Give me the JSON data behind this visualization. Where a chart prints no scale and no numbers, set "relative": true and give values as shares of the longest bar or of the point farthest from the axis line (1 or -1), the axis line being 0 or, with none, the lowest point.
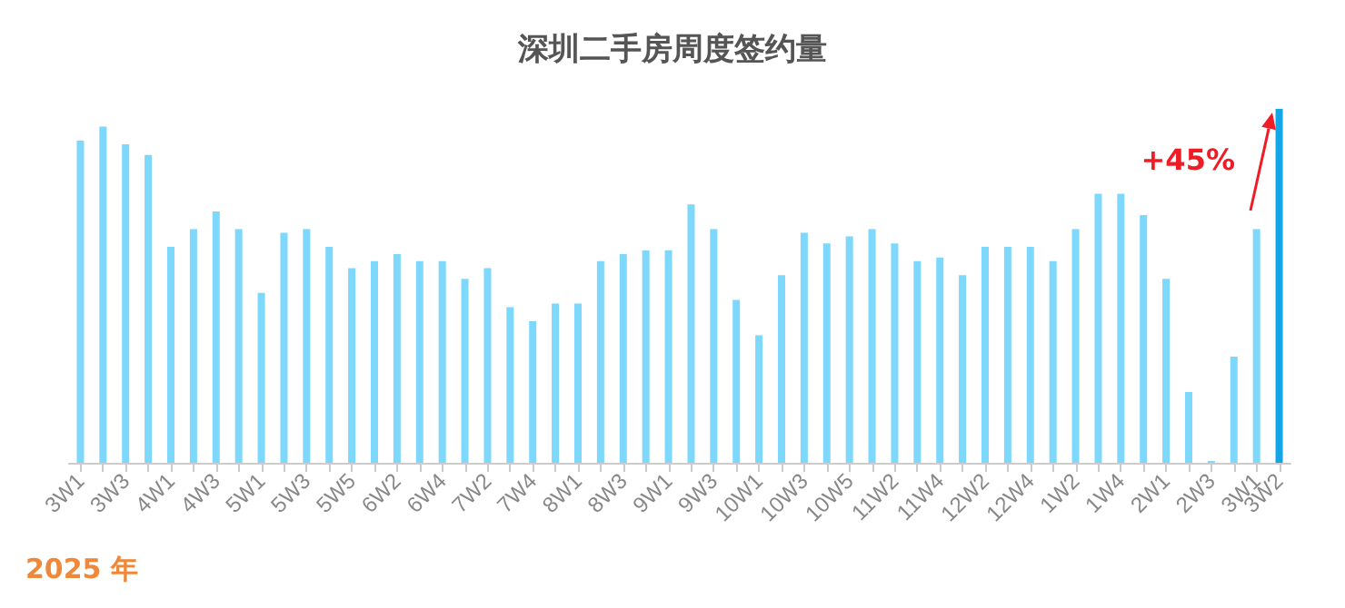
{
  "chart_data": {
    "type": "bar",
    "title": "深圳二手房周度签约量",
    "relative": true,
    "categories": [
      "3W1",
      null,
      "3W3",
      null,
      "4W1",
      null,
      "4W3",
      null,
      "5W1",
      null,
      "5W3",
      null,
      "5W5",
      null,
      "6W2",
      null,
      "6W4",
      null,
      "7W2",
      null,
      "7W4",
      null,
      "8W1",
      null,
      "8W3",
      null,
      "9W1",
      null,
      "9W3",
      null,
      "10W1",
      null,
      "10W3",
      null,
      "10W5",
      null,
      "11W2",
      null,
      "11W4",
      null,
      "12W2",
      null,
      "12W4",
      null,
      "1W2",
      null,
      "1W4",
      null,
      "2W1",
      null,
      "2W3",
      null,
      "3W1",
      "3W2"
    ],
    "values": [
      0.91,
      0.95,
      0.9,
      0.87,
      0.61,
      0.66,
      0.71,
      0.66,
      0.48,
      0.65,
      0.66,
      0.61,
      0.55,
      0.57,
      0.59,
      0.57,
      0.57,
      0.52,
      0.55,
      0.44,
      0.4,
      0.45,
      0.45,
      0.57,
      0.59,
      0.6,
      0.6,
      0.73,
      0.66,
      0.46,
      0.36,
      0.53,
      0.65,
      0.62,
      0.64,
      0.66,
      0.62,
      0.57,
      0.58,
      0.53,
      0.61,
      0.61,
      0.61,
      0.57,
      0.66,
      0.76,
      0.76,
      0.7,
      0.52,
      0.2,
      0.005,
      0.3,
      0.66,
      1
    ],
    "colors": [
      "#7dd8fb",
      "#7dd8fb",
      "#7dd8fb",
      "#7dd8fb",
      "#7dd8fb",
      "#7dd8fb",
      "#7dd8fb",
      "#7dd8fb",
      "#7dd8fb",
      "#7dd8fb",
      "#7dd8fb",
      "#7dd8fb",
      "#7dd8fb",
      "#7dd8fb",
      "#7dd8fb",
      "#7dd8fb",
      "#7dd8fb",
      "#7dd8fb",
      "#7dd8fb",
      "#7dd8fb",
      "#7dd8fb",
      "#7dd8fb",
      "#7dd8fb",
      "#7dd8fb",
      "#7dd8fb",
      "#7dd8fb",
      "#7dd8fb",
      "#7dd8fb",
      "#7dd8fb",
      "#7dd8fb",
      "#7dd8fb",
      "#7dd8fb",
      "#7dd8fb",
      "#7dd8fb",
      "#7dd8fb",
      "#7dd8fb",
      "#7dd8fb",
      "#7dd8fb",
      "#7dd8fb",
      "#7dd8fb",
      "#7dd8fb",
      "#7dd8fb",
      "#7dd8fb",
      "#7dd8fb",
      "#7dd8fb",
      "#7dd8fb",
      "#7dd8fb",
      "#7dd8fb",
      "#7dd8fb",
      "#7dd8fb",
      "#7dd8fb",
      "#7dd8fb",
      "#7dd8fb",
      "#13a6e6"
    ],
    "annotations": [
      {
        "text": "+45%",
        "x": "3W2",
        "y": 1
      },
      "2025 年"
    ]
  }
}
